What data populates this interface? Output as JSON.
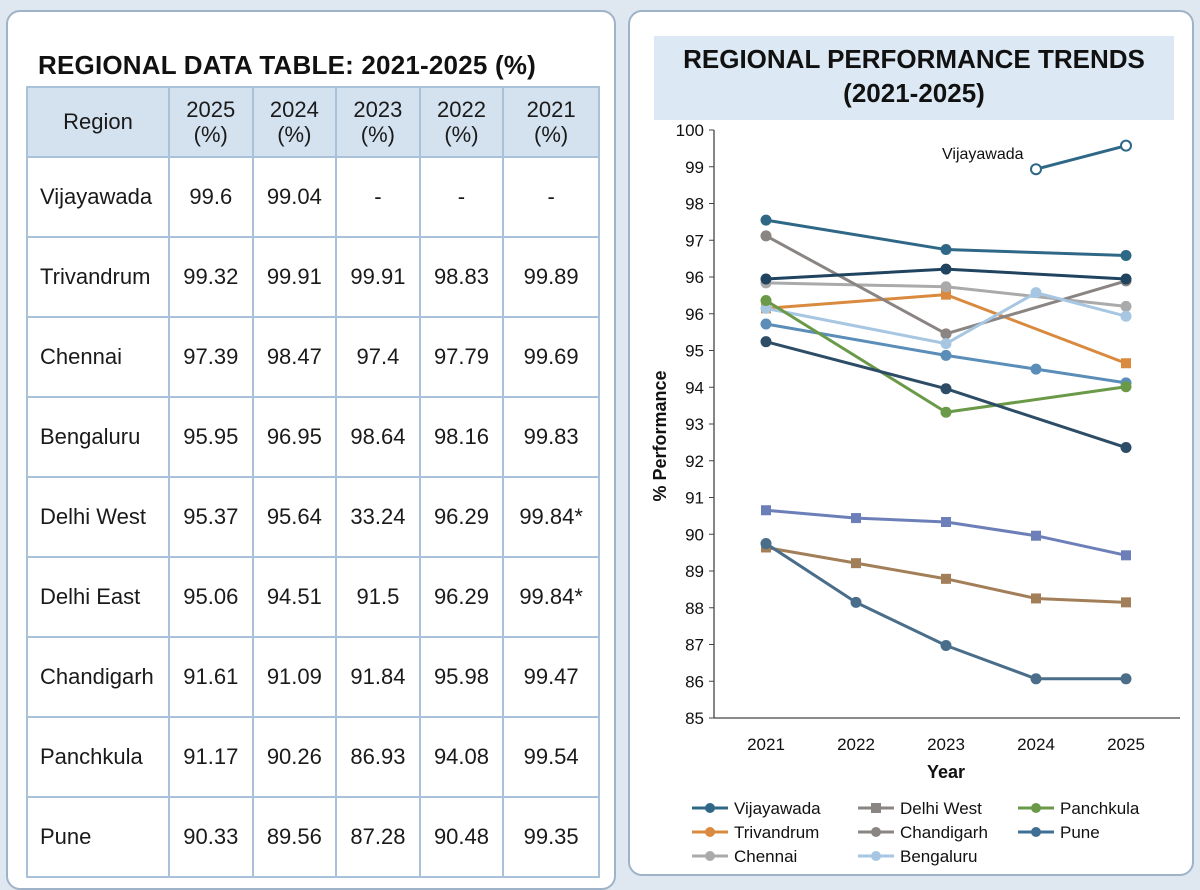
{
  "table": {
    "title": "REGIONAL DATA TABLE: 2021-2025 (%)",
    "headers": [
      "Region",
      "2025 (%)",
      "2024 (%)",
      "2023 (%)",
      "2022 (%)",
      "2021 (%)"
    ],
    "rows": [
      [
        "Vijayawada",
        "99.6",
        "99.04",
        "-",
        "-",
        "-"
      ],
      [
        "Trivandrum",
        "99.32",
        "99.91",
        "99.91",
        "98.83",
        "99.89"
      ],
      [
        "Chennai",
        "97.39",
        "98.47",
        "97.4",
        "97.79",
        "99.69"
      ],
      [
        "Bengaluru",
        "95.95",
        "96.95",
        "98.64",
        "98.16",
        "99.83"
      ],
      [
        "Delhi West",
        "95.37",
        "95.64",
        "33.24",
        "96.29",
        "99.84*"
      ],
      [
        "Delhi East",
        "95.06",
        "94.51",
        "91.5",
        "96.29",
        "99.84*"
      ],
      [
        "Chandigarh",
        "91.61",
        "91.09",
        "91.84",
        "95.98",
        "99.47"
      ],
      [
        "Panchkula",
        "91.17",
        "90.26",
        "86.93",
        "94.08",
        "99.54"
      ],
      [
        "Pune",
        "90.33",
        "89.56",
        "87.28",
        "90.48",
        "99.35"
      ]
    ]
  },
  "chart_data": {
    "type": "line",
    "title": "REGIONAL PERFORMANCE TRENDS",
    "subtitle": "(2021-2025)",
    "xlabel": "Year",
    "ylabel": "% Performance",
    "x": [
      "2021",
      "2022",
      "2023",
      "2024",
      "2025"
    ],
    "ylim": [
      85,
      100
    ],
    "yticks": [
      "100",
      "99",
      "98",
      "97",
      "96",
      "96",
      "95",
      "94",
      "93",
      "92",
      "91",
      "90",
      "89",
      "88",
      "87",
      "86",
      "85"
    ],
    "grid": false,
    "legend_position": "bottom",
    "annotation": "Vijayawada",
    "series": [
      {
        "name": "Vijayawada",
        "color": "#2f6886",
        "marker": "open-circle",
        "values": [
          null,
          null,
          null,
          99.0,
          99.6
        ]
      },
      {
        "name": "Vijayawada",
        "color": "#2f6886",
        "marker": "circle",
        "values": [
          97.7,
          null,
          96.95,
          null,
          96.8
        ]
      },
      {
        "name": "Trivandrum",
        "color": "#d98a3e",
        "marker": "square",
        "values": [
          95.45,
          null,
          95.8,
          null,
          94.05
        ]
      },
      {
        "name": "Chennai",
        "color": "#a9aaa9",
        "marker": "circle",
        "values": [
          96.1,
          null,
          96.0,
          null,
          95.5
        ]
      },
      {
        "name": "Delhi West",
        "color": "#8a8482",
        "marker": "circle",
        "values": [
          97.3,
          null,
          94.8,
          null,
          96.15
        ]
      },
      {
        "name": "Chandigarh",
        "color": "#20435f",
        "marker": "circle",
        "values": [
          96.2,
          null,
          96.45,
          null,
          96.2
        ]
      },
      {
        "name": "Bengaluru",
        "color": "#a7c6e2",
        "marker": "circle",
        "values": [
          95.45,
          null,
          94.55,
          95.85,
          95.25
        ]
      },
      {
        "name": "Pune",
        "color": "#5a8db8",
        "marker": "circle",
        "values": [
          95.05,
          null,
          94.25,
          93.9,
          93.55
        ]
      },
      {
        "name": "Panchkula",
        "color": "#6a9a48",
        "marker": "circle",
        "values": [
          95.65,
          null,
          92.8,
          null,
          93.45
        ]
      },
      {
        "name": "Pune",
        "color": "#2d4c65",
        "marker": "circle",
        "values": [
          94.6,
          null,
          93.4,
          null,
          91.9
        ]
      },
      {
        "name": "Delhi West",
        "color": "#6d7fb8",
        "marker": "square",
        "values": [
          90.3,
          90.1,
          90.0,
          89.65,
          89.15
        ]
      },
      {
        "name": "Trivandrum",
        "color": "#a27f58",
        "marker": "square",
        "values": [
          89.35,
          88.95,
          88.55,
          88.05,
          87.95
        ]
      },
      {
        "name": "Pune",
        "color": "#4a6e8a",
        "marker": "circle",
        "values": [
          89.45,
          87.95,
          86.85,
          86.0,
          86.0
        ]
      }
    ],
    "legend": [
      {
        "label": "Vijayawada",
        "color": "#2f6886",
        "marker": "circle"
      },
      {
        "label": "Delhi West",
        "color": "#8a8482",
        "marker": "square"
      },
      {
        "label": "Panchkula",
        "color": "#6a9a48",
        "marker": "circle"
      },
      {
        "label": "Trivandrum",
        "color": "#d98a3e",
        "marker": "circle"
      },
      {
        "label": "Chandigarh",
        "color": "#8a8482",
        "marker": "circle"
      },
      {
        "label": "Pune",
        "color": "#3f6f94",
        "marker": "circle"
      },
      {
        "label": "Chennai",
        "color": "#a9aaa9",
        "marker": "circle"
      },
      {
        "label": "Bengaluru",
        "color": "#a7c6e2",
        "marker": "circle"
      }
    ]
  }
}
